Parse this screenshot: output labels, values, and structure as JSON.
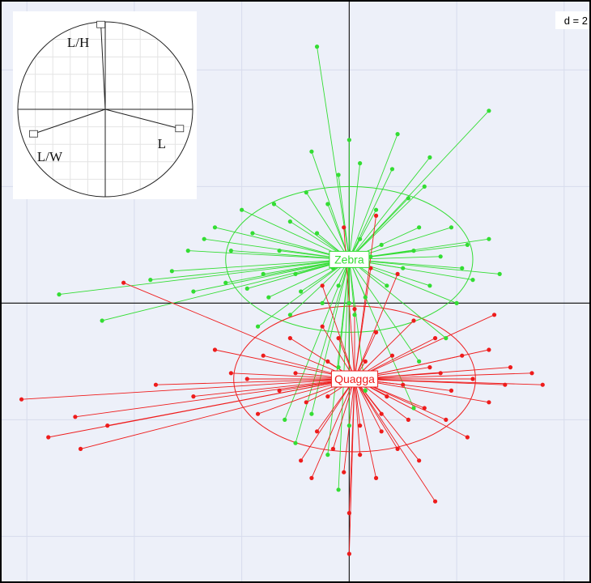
{
  "chart_data": {
    "type": "scatter",
    "scale_label": "d = 2",
    "background": "#edf0f9",
    "x_range": [
      -6.5,
      4.5
    ],
    "y_range": [
      -4.8,
      5.2
    ],
    "grid_step": 2,
    "groups": [
      {
        "name": "Zebra",
        "color": "#33dd33",
        "centroid": [
          0.0,
          0.75
        ],
        "ellipse": {
          "rx": 2.3,
          "ry": 1.25
        },
        "points": [
          [
            -0.6,
            4.4
          ],
          [
            2.6,
            3.3
          ],
          [
            -5.4,
            0.15
          ],
          [
            -4.6,
            -0.3
          ],
          [
            -3.0,
            0.9
          ],
          [
            -3.3,
            0.55
          ],
          [
            -2.7,
            1.1
          ],
          [
            -2.3,
            0.35
          ],
          [
            -2.0,
            1.6
          ],
          [
            -1.8,
            1.2
          ],
          [
            -2.2,
            0.9
          ],
          [
            -1.6,
            0.5
          ],
          [
            -1.9,
            0.25
          ],
          [
            -1.1,
            1.4
          ],
          [
            -1.3,
            0.9
          ],
          [
            -1.0,
            0.5
          ],
          [
            -0.8,
            1.9
          ],
          [
            -1.4,
            1.7
          ],
          [
            -0.6,
            1.2
          ],
          [
            -0.9,
            0.2
          ],
          [
            -0.4,
            1.7
          ],
          [
            -0.3,
            0.6
          ],
          [
            -1.7,
            -0.4
          ],
          [
            -1.1,
            -0.2
          ],
          [
            -1.5,
            0.1
          ],
          [
            -0.2,
            2.2
          ],
          [
            0.0,
            2.8
          ],
          [
            0.2,
            2.4
          ],
          [
            0.5,
            1.6
          ],
          [
            0.8,
            2.3
          ],
          [
            0.6,
            1.0
          ],
          [
            1.1,
            1.8
          ],
          [
            1.4,
            2.0
          ],
          [
            1.0,
            0.6
          ],
          [
            1.3,
            1.3
          ],
          [
            1.7,
            0.8
          ],
          [
            1.9,
            1.3
          ],
          [
            2.1,
            0.6
          ],
          [
            2.2,
            1.0
          ],
          [
            1.5,
            0.3
          ],
          [
            1.2,
            0.9
          ],
          [
            2.0,
            0.0
          ],
          [
            2.3,
            0.4
          ],
          [
            2.6,
            1.1
          ],
          [
            2.8,
            0.5
          ],
          [
            0.7,
            0.3
          ],
          [
            0.4,
            0.8
          ],
          [
            0.2,
            1.1
          ],
          [
            -0.5,
            0.0
          ],
          [
            -0.2,
            0.3
          ],
          [
            0.1,
            -0.2
          ],
          [
            0.3,
            0.1
          ],
          [
            0.0,
            0.0
          ],
          [
            -0.7,
            2.6
          ],
          [
            0.9,
            2.9
          ],
          [
            1.5,
            2.5
          ],
          [
            -2.5,
            1.3
          ],
          [
            -3.7,
            0.4
          ],
          [
            -2.9,
            0.2
          ],
          [
            0.3,
            -1.5
          ],
          [
            -0.2,
            -1.1
          ],
          [
            1.8,
            -0.6
          ],
          [
            1.3,
            -1.0
          ],
          [
            -1.2,
            -2.0
          ],
          [
            -0.7,
            -1.9
          ],
          [
            -0.4,
            -2.6
          ],
          [
            -1.0,
            -2.4
          ],
          [
            1.2,
            -1.8
          ],
          [
            -0.2,
            -3.2
          ],
          [
            0.0,
            -2.1
          ]
        ]
      },
      {
        "name": "Quagga",
        "color": "#ee1c1c",
        "centroid": [
          0.1,
          -1.3
        ],
        "ellipse": {
          "rx": 2.25,
          "ry": 1.25
        },
        "points": [
          [
            -4.2,
            0.35
          ],
          [
            -6.1,
            -1.65
          ],
          [
            -5.6,
            -2.3
          ],
          [
            -5.0,
            -2.5
          ],
          [
            -5.1,
            -1.95
          ],
          [
            -4.5,
            -2.1
          ],
          [
            -3.6,
            -1.4
          ],
          [
            -2.9,
            -1.6
          ],
          [
            -2.2,
            -1.2
          ],
          [
            -1.7,
            -1.9
          ],
          [
            -1.3,
            -1.5
          ],
          [
            -1.6,
            -0.9
          ],
          [
            -1.0,
            -1.2
          ],
          [
            -0.8,
            -1.7
          ],
          [
            -1.1,
            -0.6
          ],
          [
            -0.5,
            -0.4
          ],
          [
            -0.4,
            -1.0
          ],
          [
            -0.6,
            -2.2
          ],
          [
            -0.3,
            -2.5
          ],
          [
            -0.7,
            -3.0
          ],
          [
            -0.9,
            -2.7
          ],
          [
            -0.1,
            -2.9
          ],
          [
            0.0,
            -3.6
          ],
          [
            0.0,
            -4.3
          ],
          [
            0.2,
            -2.6
          ],
          [
            0.5,
            -3.0
          ],
          [
            0.6,
            -2.2
          ],
          [
            0.9,
            -2.5
          ],
          [
            1.1,
            -2.0
          ],
          [
            1.0,
            -1.4
          ],
          [
            1.4,
            -1.8
          ],
          [
            1.7,
            -1.2
          ],
          [
            1.9,
            -1.5
          ],
          [
            2.1,
            -0.9
          ],
          [
            2.3,
            -1.3
          ],
          [
            2.6,
            -0.8
          ],
          [
            2.9,
            -1.4
          ],
          [
            3.0,
            -1.1
          ],
          [
            3.4,
            -1.2
          ],
          [
            3.6,
            -1.4
          ],
          [
            2.6,
            -1.7
          ],
          [
            1.6,
            -0.6
          ],
          [
            1.2,
            -0.3
          ],
          [
            0.8,
            -0.9
          ],
          [
            0.5,
            -0.5
          ],
          [
            0.3,
            -1.0
          ],
          [
            0.4,
            0.6
          ],
          [
            0.1,
            -0.1
          ],
          [
            -0.2,
            -0.6
          ],
          [
            -0.1,
            1.3
          ],
          [
            0.5,
            1.5
          ],
          [
            0.9,
            0.5
          ],
          [
            -0.5,
            0.3
          ],
          [
            1.6,
            -3.4
          ],
          [
            2.7,
            -0.2
          ],
          [
            1.3,
            -2.7
          ],
          [
            2.2,
            -2.3
          ],
          [
            1.8,
            -2.0
          ],
          [
            0.7,
            -1.6
          ],
          [
            -1.9,
            -1.3
          ],
          [
            -2.5,
            -0.8
          ],
          [
            -0.2,
            -1.4
          ],
          [
            1.5,
            -1.1
          ],
          [
            0.6,
            -1.9
          ],
          [
            0.2,
            -2.1
          ],
          [
            -0.4,
            -1.6
          ]
        ]
      }
    ],
    "correlation_circle": {
      "variables": [
        {
          "label": "L/H",
          "x": -0.05,
          "y": 0.97,
          "box": "Lh"
        },
        {
          "label": "L/W",
          "x": -0.82,
          "y": -0.28,
          "box": "Lw"
        },
        {
          "label": "L",
          "x": 0.85,
          "y": -0.22,
          "box": "L"
        }
      ]
    }
  }
}
